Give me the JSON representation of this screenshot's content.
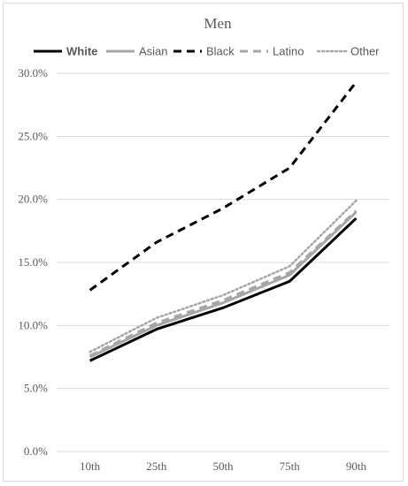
{
  "chart_data": {
    "type": "line",
    "title": "Men",
    "xlabel": "",
    "ylabel": "",
    "categories": [
      "10th",
      "25th",
      "50th",
      "75th",
      "90th"
    ],
    "ylim": [
      0,
      30
    ],
    "y_ticks": [
      "0.0%",
      "5.0%",
      "10.0%",
      "15.0%",
      "20.0%",
      "25.0%",
      "30.0%"
    ],
    "grid": true,
    "legend_position": "top",
    "series": [
      {
        "name": "White",
        "values": [
          7.2,
          9.7,
          11.4,
          13.5,
          18.5
        ],
        "color": "#000000",
        "style": "solid"
      },
      {
        "name": "Asian",
        "values": [
          7.5,
          10.0,
          11.8,
          14.0,
          19.0
        ],
        "color": "#a6a6a6",
        "style": "solid"
      },
      {
        "name": "Black",
        "values": [
          12.8,
          16.6,
          19.3,
          22.5,
          29.3
        ],
        "color": "#000000",
        "style": "dashed"
      },
      {
        "name": "Latino",
        "values": [
          7.6,
          10.2,
          12.0,
          14.2,
          19.1
        ],
        "color": "#a6a6a6",
        "style": "dashed"
      },
      {
        "name": "Other",
        "values": [
          7.9,
          10.6,
          12.4,
          14.7,
          19.9
        ],
        "color": "#a6a6a6",
        "style": "dotted"
      }
    ]
  }
}
